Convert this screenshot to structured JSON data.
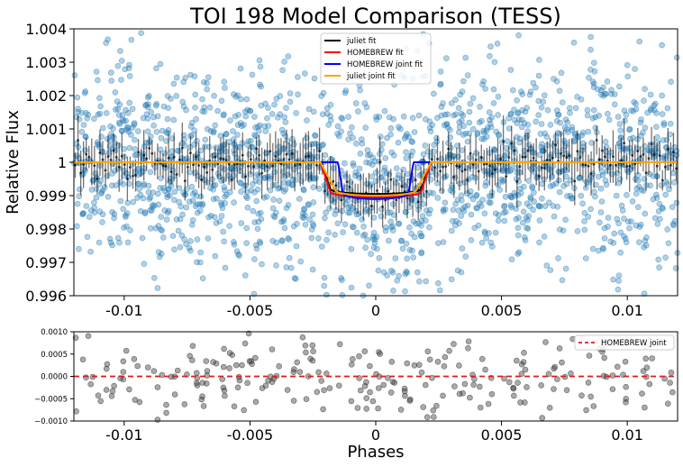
{
  "chart_data": [
    {
      "type": "scatter",
      "title": "TOI 198 Model Comparison (TESS)",
      "xlabel": "",
      "ylabel": "Relative Flux",
      "xlim": [
        -0.012,
        0.012
      ],
      "ylim": [
        0.996,
        1.004
      ],
      "x_ticks": [
        -0.01,
        -0.005,
        0,
        0.005,
        0.01
      ],
      "x_tick_labels": [
        "-0.01",
        "-0.005",
        "0",
        "0.005",
        "0.01"
      ],
      "y_ticks": [
        0.996,
        0.997,
        0.998,
        0.999,
        1.0,
        1.001,
        1.002,
        1.003,
        1.004
      ],
      "y_tick_labels": [
        "0.996",
        "0.997",
        "0.998",
        "0.999",
        "1",
        "1.001",
        "1.002",
        "1.003",
        "1.004"
      ],
      "grid": false,
      "legend_position": "top-center",
      "transit": {
        "juliet_fit": {
          "ingress_start": -0.0022,
          "full_start": -0.0018,
          "depth": 0.00095
        },
        "homebrew_fit": {
          "ingress_start": -0.0022,
          "full_start": -0.0018,
          "depth": 0.00105
        },
        "homebrew_joint_fit": {
          "ingress_start": -0.0015,
          "full_start": -0.0013,
          "depth": 0.0011
        },
        "juliet_joint_fit": {
          "ingress_start": -0.0022,
          "full_start": -0.0016,
          "depth": 0.001
        },
        "data_noise_sigma": 0.0015
      },
      "series": [
        {
          "name": "juliet fit",
          "color": "#000000",
          "kind": "line"
        },
        {
          "name": "HOMEBREW fit",
          "color": "#ff0000",
          "kind": "line"
        },
        {
          "name": "HOMEBREW joint fit",
          "color": "#0000ff",
          "kind": "line"
        },
        {
          "name": "juliet joint fit",
          "color": "#ffa500",
          "kind": "line"
        }
      ],
      "data_color": "#1f77b4",
      "binned_color": "#000000"
    },
    {
      "type": "scatter",
      "title": "",
      "xlabel": "Phases",
      "ylabel": "",
      "xlim": [
        -0.012,
        0.012
      ],
      "ylim": [
        -0.001,
        0.001
      ],
      "x_ticks": [
        -0.01,
        -0.005,
        0,
        0.005,
        0.01
      ],
      "x_tick_labels": [
        "-0.01",
        "-0.005",
        "0",
        "0.005",
        "0.01"
      ],
      "y_ticks": [
        -0.001,
        -0.0005,
        0,
        0.0005,
        0.001
      ],
      "y_tick_labels": [
        "−0.0010",
        "−0.0005",
        "0.0000",
        "0.0005",
        "0.0010"
      ],
      "grid": false,
      "legend_position": "top-right",
      "series": [
        {
          "name": "HOMEBREW joint",
          "color": "#e41a1c",
          "kind": "dashed-line",
          "y": 0
        }
      ],
      "residual_color": "#404040",
      "residual_sigma": 0.0005
    }
  ]
}
